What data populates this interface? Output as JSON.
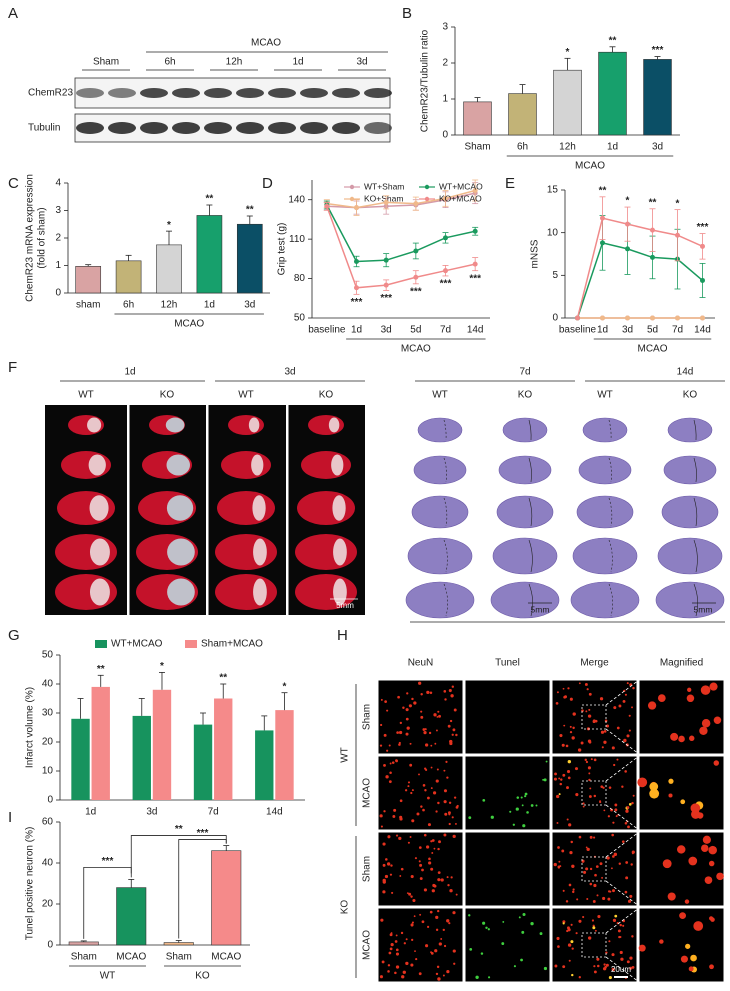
{
  "blot": {
    "panel": "A",
    "sham": "Sham",
    "group": "MCAO",
    "timepoints": [
      "6h",
      "12h",
      "1d",
      "3d"
    ],
    "proteins": [
      "ChemR23",
      "Tubulin"
    ]
  },
  "chart_data": [
    {
      "panel": "B",
      "type": "bar",
      "categories": [
        "Sham",
        "6h",
        "12h",
        "1d",
        "3d"
      ],
      "values": [
        0.92,
        1.15,
        1.8,
        2.3,
        2.1
      ],
      "errors": [
        0.12,
        0.25,
        0.33,
        0.15,
        0.08
      ],
      "colors": [
        "#d9a3a3",
        "#c2b377",
        "#d4d4d4",
        "#17a06c",
        "#0b4f66"
      ],
      "significance": [
        null,
        null,
        "*",
        "**",
        "***"
      ],
      "group_label": "MCAO",
      "ylabel": "ChemR23/Tubulin ratio",
      "ylim": [
        0,
        3
      ],
      "yticks": [
        0,
        1,
        2,
        3
      ]
    },
    {
      "panel": "C",
      "type": "bar",
      "categories": [
        "sham",
        "6h",
        "12h",
        "1d",
        "3d"
      ],
      "values": [
        0.97,
        1.17,
        1.75,
        2.82,
        2.5
      ],
      "errors": [
        0.06,
        0.2,
        0.5,
        0.38,
        0.3
      ],
      "colors": [
        "#d9a3a3",
        "#c2b377",
        "#d4d4d4",
        "#17a06c",
        "#0b4f66"
      ],
      "significance": [
        null,
        null,
        "*",
        "**",
        "**"
      ],
      "group_label": "MCAO",
      "ylabel": [
        "ChemR23 mRNA expression",
        "(fold of sham)"
      ],
      "ylim": [
        0,
        4
      ],
      "yticks": [
        0,
        1,
        2,
        3,
        4
      ]
    },
    {
      "panel": "D",
      "type": "line",
      "categories": [
        "baseline",
        "1d",
        "3d",
        "5d",
        "7d",
        "14d"
      ],
      "group_label": "MCAO",
      "ylabel": "Grip test (g)",
      "ylim": [
        50,
        155
      ],
      "yticks": [
        50,
        80,
        110,
        140
      ],
      "series": [
        {
          "name": "WT+Sham",
          "color": "#d49aa8",
          "values": [
            135,
            134,
            135,
            136,
            140,
            145
          ],
          "errors": [
            3,
            5,
            6,
            4,
            6,
            8
          ]
        },
        {
          "name": "KO+Sham",
          "color": "#f0b98a",
          "values": [
            137,
            134,
            138,
            137,
            141,
            147
          ],
          "errors": [
            3,
            6,
            5,
            5,
            6,
            8
          ]
        },
        {
          "name": "WT+MCAO",
          "color": "#1a9a5e",
          "values": [
            136,
            93,
            94,
            101,
            111,
            116
          ],
          "errors": [
            3,
            4,
            5,
            6,
            4,
            3
          ]
        },
        {
          "name": "KO+MCAO",
          "color": "#f08a8a",
          "values": [
            135,
            73,
            75,
            81,
            86,
            91
          ],
          "errors": [
            3,
            5,
            4,
            5,
            4,
            5
          ],
          "significance": [
            null,
            "***",
            "***",
            "***",
            "***",
            "***"
          ]
        }
      ]
    },
    {
      "panel": "E",
      "type": "line",
      "categories": [
        "baseline",
        "1d",
        "3d",
        "5d",
        "7d",
        "14d"
      ],
      "group_label": "MCAO",
      "ylabel": "mNSS",
      "ylim": [
        0,
        15
      ],
      "yticks": [
        0,
        5,
        10,
        15
      ],
      "series": [
        {
          "color": "#d49aa8",
          "values": [
            0,
            0,
            0,
            0,
            0,
            0
          ]
        },
        {
          "color": "#f0b98a",
          "values": [
            0,
            0,
            0,
            0,
            0,
            0
          ]
        },
        {
          "color": "#1a9a5e",
          "values": [
            0,
            8.8,
            8.1,
            7.1,
            6.9,
            4.4
          ],
          "errors": [
            0,
            3.2,
            3,
            2.5,
            3.5,
            2
          ]
        },
        {
          "color": "#f08a8a",
          "values": [
            0,
            11.7,
            11,
            10.3,
            9.7,
            8.4
          ],
          "errors": [
            0,
            2.5,
            2,
            2.5,
            3,
            1.5
          ],
          "significance": [
            null,
            "**",
            "*",
            "**",
            "*",
            "***"
          ]
        }
      ]
    },
    {
      "panel": "G",
      "type": "bar",
      "categories": [
        "1d",
        "3d",
        "7d",
        "14d"
      ],
      "ylabel": "Infarct volume (%)",
      "ylim": [
        0,
        50
      ],
      "yticks": [
        0,
        10,
        20,
        30,
        40,
        50
      ],
      "series": [
        {
          "name": "WT+MCAO",
          "color": "#17935e",
          "values": [
            28,
            29,
            26,
            24
          ],
          "errors": [
            7,
            6,
            4,
            5
          ]
        },
        {
          "name": "Sham+MCAO",
          "color": "#f58a8a",
          "values": [
            39,
            38,
            35,
            31
          ],
          "errors": [
            4,
            6,
            5,
            6
          ],
          "significance": [
            "**",
            "*",
            "**",
            "*"
          ]
        }
      ]
    },
    {
      "panel": "I",
      "type": "bar",
      "categories": [
        "Sham",
        "MCAO",
        "Sham",
        "MCAO"
      ],
      "groups": [
        "WT",
        "KO"
      ],
      "values": [
        1.5,
        28,
        1.2,
        46
      ],
      "errors": [
        0.5,
        4,
        1,
        2.5
      ],
      "colors": [
        "#d9a3a3",
        "#17935e",
        "#f0b98a",
        "#f58a8a"
      ],
      "comparisons": [
        "***",
        "**",
        "***"
      ],
      "ylabel": "Tunel positive neuron (%)",
      "ylim": [
        0,
        60
      ],
      "yticks": [
        0,
        20,
        40,
        60
      ]
    }
  ],
  "brains": {
    "panel": "F",
    "times": [
      "1d",
      "3d",
      "7d",
      "14d"
    ],
    "genotypes": [
      "WT",
      "KO"
    ],
    "scale_bars": [
      "5mm",
      "5mm",
      "5mm"
    ]
  },
  "fluorescence": {
    "panel": "H",
    "columns": [
      "NeuN",
      "Tunel",
      "Merge",
      "Magnified"
    ],
    "groups": [
      {
        "name": "WT",
        "rows": [
          "Sham",
          "MCAO"
        ]
      },
      {
        "name": "KO",
        "rows": [
          "Sham",
          "MCAO"
        ]
      }
    ],
    "scale_bar": "20um"
  }
}
